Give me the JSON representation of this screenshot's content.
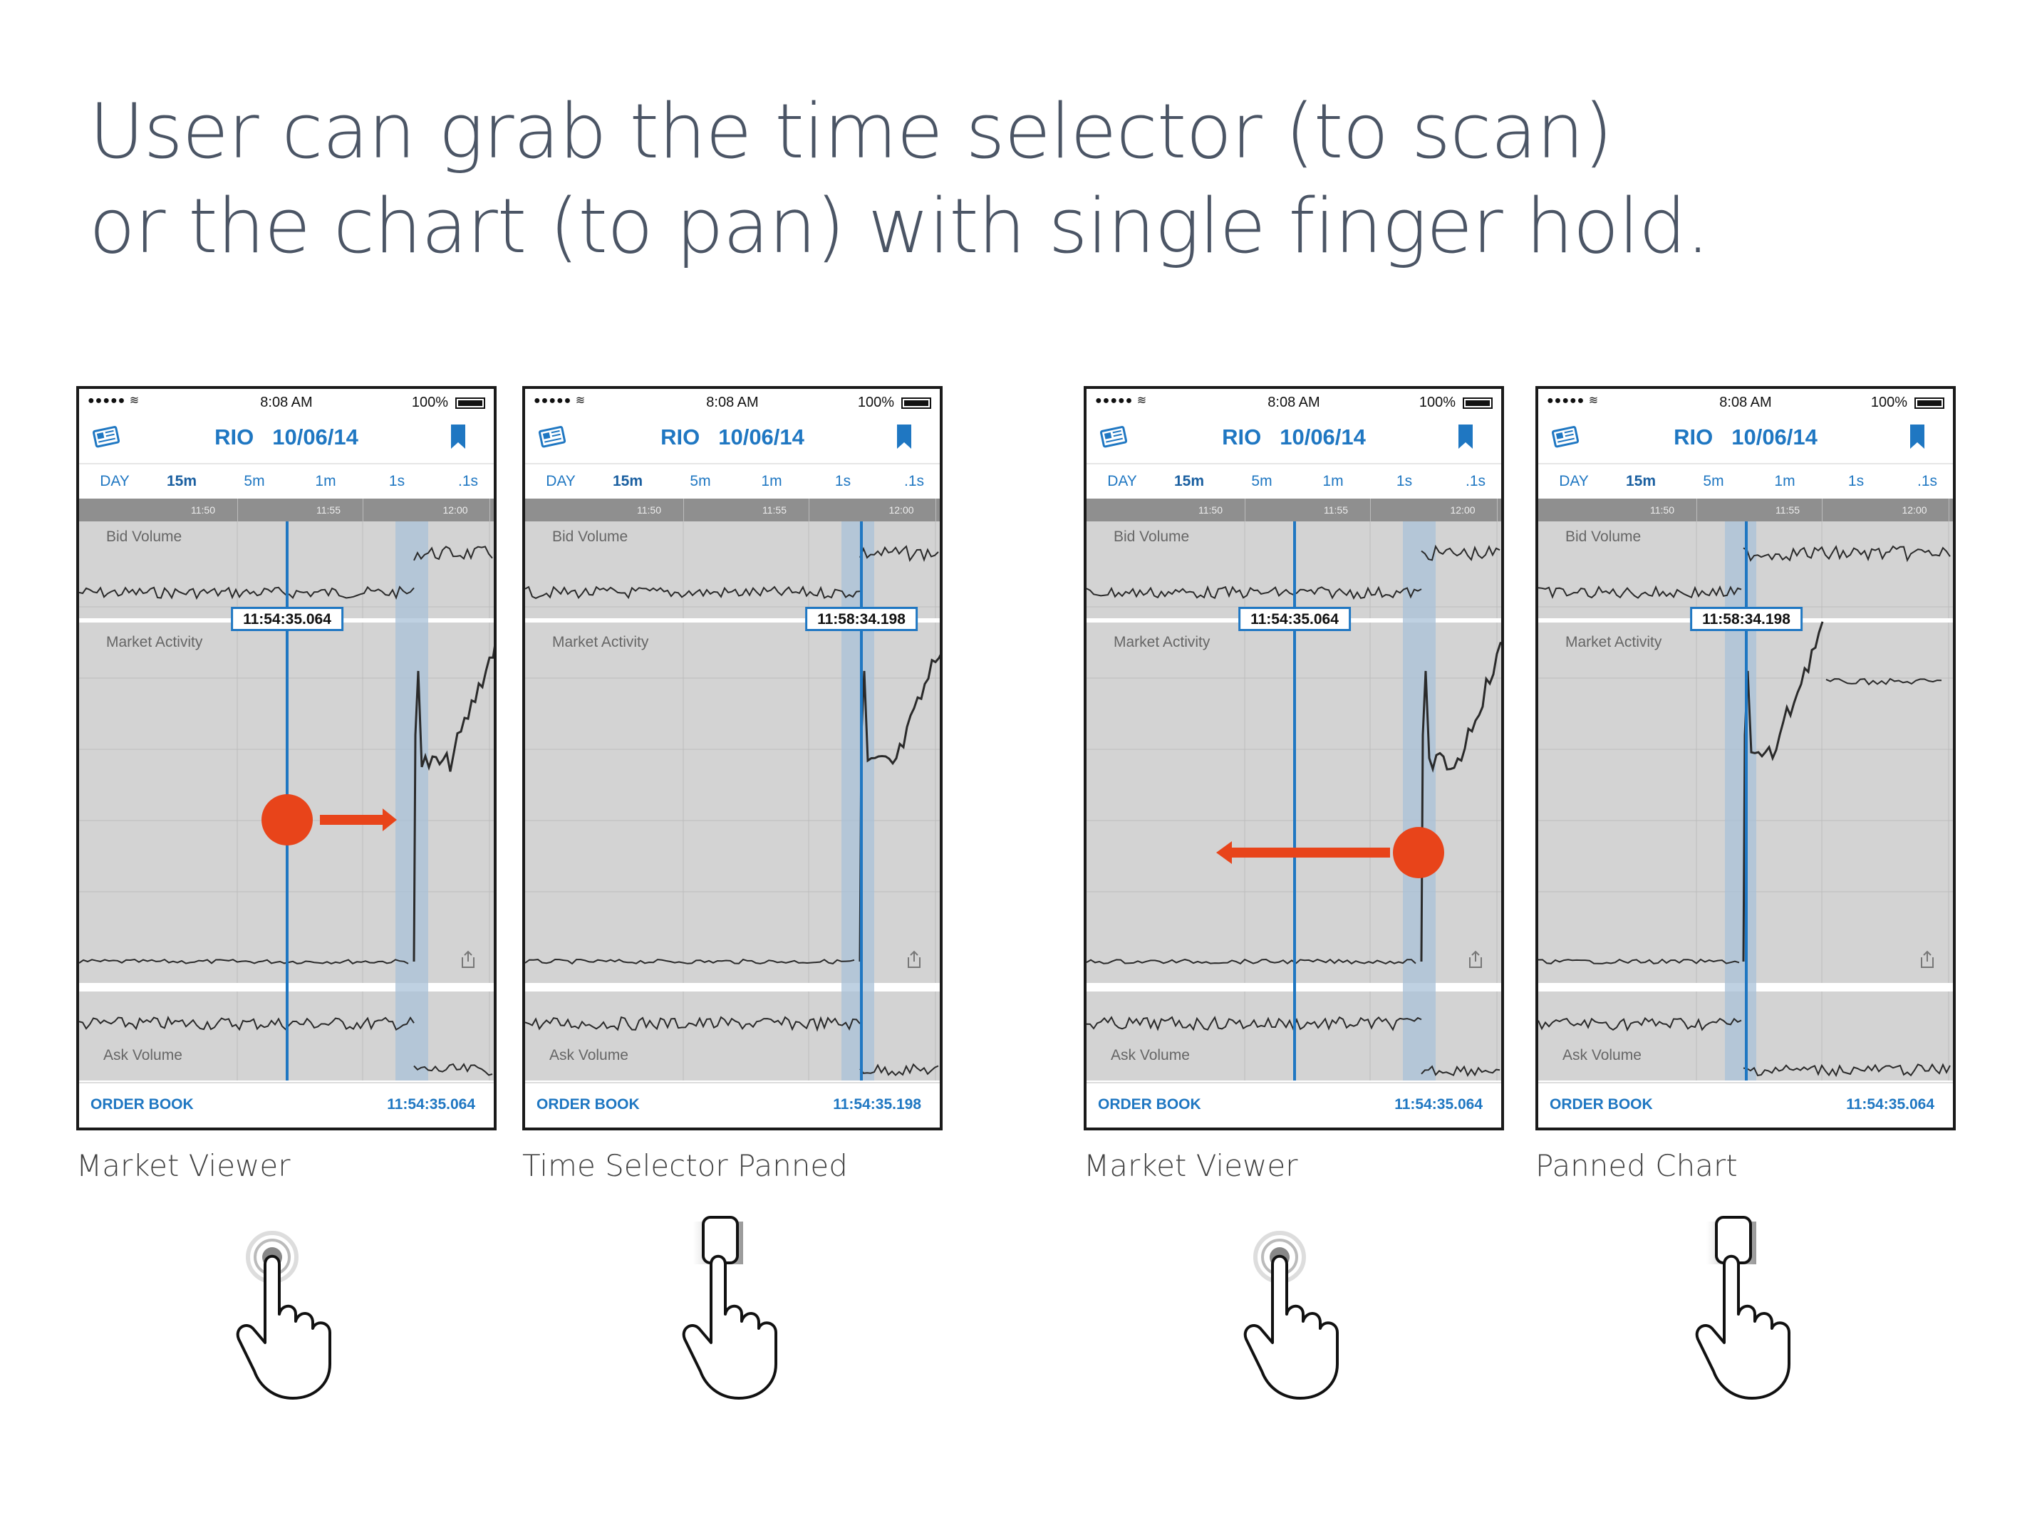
{
  "headline": {
    "line1": "User can grab the time selector (to scan)",
    "line2": "or the chart (to pan) with single finger hold."
  },
  "colors": {
    "accent": "#1f77c2",
    "gesture": "#e8441a",
    "chart_bg": "#d3d3d3",
    "axis_bar": "#8f8f8f"
  },
  "icons": [
    "news-icon",
    "bookmark-icon",
    "share-icon",
    "wifi-icon",
    "battery-icon",
    "hand-tap-icon",
    "hand-drag-icon"
  ],
  "screens": [
    {
      "status": {
        "signal": "●●●●● ≋",
        "time": "8:08 AM",
        "battery": "100%"
      },
      "symbol": "RIO",
      "date": "10/06/14",
      "tabs": [
        "DAY",
        "15m",
        "5m",
        "1m",
        "1s",
        ".1s"
      ],
      "active_tab": "15m",
      "time_ticks": [
        "11:50",
        "11:55",
        "12:00"
      ],
      "bid_label": "Bid Volume",
      "market_label": "Market Activity",
      "ask_label": "Ask Volume",
      "selector_time": "11:54:35.064",
      "order_book": "ORDER BOOK",
      "bottom_time": "11:54:35.064",
      "caption": "Market Viewer",
      "gesture": "tap-hold"
    },
    {
      "status": {
        "signal": "●●●●● ≋",
        "time": "8:08 AM",
        "battery": "100%"
      },
      "symbol": "RIO",
      "date": "10/06/14",
      "tabs": [
        "DAY",
        "15m",
        "5m",
        "1m",
        "1s",
        ".1s"
      ],
      "active_tab": "15m",
      "time_ticks": [
        "11:50",
        "11:55",
        "12:00"
      ],
      "bid_label": "Bid Volume",
      "market_label": "Market Activity",
      "ask_label": "Ask Volume",
      "selector_time": "11:58:34.198",
      "order_book": "ORDER BOOK",
      "bottom_time": "11:54:35.198",
      "caption": "Time Selector Panned",
      "gesture": "drag"
    },
    {
      "status": {
        "signal": "●●●●● ≋",
        "time": "8:08 AM",
        "battery": "100%"
      },
      "symbol": "RIO",
      "date": "10/06/14",
      "tabs": [
        "DAY",
        "15m",
        "5m",
        "1m",
        "1s",
        ".1s"
      ],
      "active_tab": "15m",
      "time_ticks": [
        "11:50",
        "11:55",
        "12:00"
      ],
      "bid_label": "Bid Volume",
      "market_label": "Market Activity",
      "ask_label": "Ask Volume",
      "selector_time": "11:54:35.064",
      "order_book": "ORDER BOOK",
      "bottom_time": "11:54:35.064",
      "caption": "Market Viewer",
      "gesture": "tap-hold"
    },
    {
      "status": {
        "signal": "●●●●● ≋",
        "time": "8:08 AM",
        "battery": "100%"
      },
      "symbol": "RIO",
      "date": "10/06/14",
      "tabs": [
        "DAY",
        "15m",
        "5m",
        "1m",
        "1s",
        ".1s"
      ],
      "active_tab": "15m",
      "time_ticks": [
        "11:50",
        "11:55",
        "12:00"
      ],
      "bid_label": "Bid Volume",
      "market_label": "Market Activity",
      "ask_label": "Ask Volume",
      "selector_time": "11:58:34.198",
      "order_book": "ORDER BOOK",
      "bottom_time": "11:54:35.064",
      "caption": "Panned Chart",
      "gesture": "drag"
    }
  ]
}
